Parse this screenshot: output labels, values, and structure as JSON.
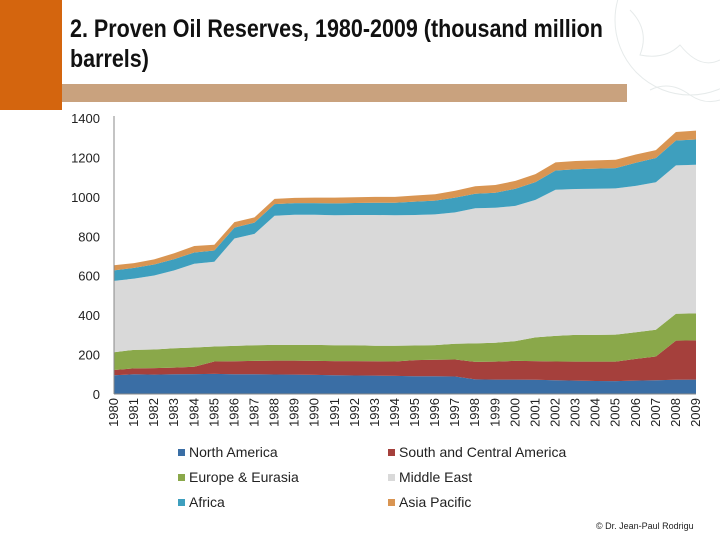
{
  "slide": {
    "title_line1": "2. Proven Oil Reserves, 1980-2009 (thousand million",
    "title_line2": "barrels)",
    "credit": "© Dr. Jean-Paul Rodrigu",
    "colors": {
      "accent": "#d4650e",
      "bar": "#c9a27e"
    }
  },
  "chart_data": {
    "type": "area",
    "stacked": true,
    "title": "2. Proven Oil Reserves, 1980-2009 (thousand million barrels)",
    "xlabel": "",
    "ylabel": "",
    "ylim": [
      0,
      1400
    ],
    "yticks": [
      0,
      200,
      400,
      600,
      800,
      1000,
      1200,
      1400
    ],
    "categories": [
      "1980",
      "1981",
      "1982",
      "1983",
      "1984",
      "1985",
      "1986",
      "1987",
      "1988",
      "1989",
      "1990",
      "1991",
      "1992",
      "1993",
      "1994",
      "1995",
      "1996",
      "1997",
      "1998",
      "1999",
      "2000",
      "2001",
      "2002",
      "2003",
      "2004",
      "2005",
      "2006",
      "2007",
      "2008",
      "2009"
    ],
    "series": [
      {
        "name": "North America",
        "color": "#3a6ea5",
        "values": [
          95,
          100,
          98,
          100,
          101,
          102,
          100,
          100,
          99,
          98,
          97,
          95,
          94,
          93,
          92,
          90,
          90,
          89,
          74,
          73,
          73,
          72,
          70,
          68,
          66,
          65,
          68,
          70,
          72,
          73
        ]
      },
      {
        "name": "South and Central America",
        "color": "#a5403c",
        "values": [
          27,
          30,
          33,
          34,
          37,
          63,
          66,
          68,
          70,
          71,
          71,
          72,
          73,
          73,
          73,
          82,
          84,
          86,
          89,
          91,
          95,
          95,
          95,
          96,
          98,
          99,
          110,
          120,
          199,
          199
        ]
      },
      {
        "name": "Europe & Eurasia",
        "color": "#8aa84a",
        "values": [
          90,
          94,
          95,
          98,
          98,
          76,
          78,
          79,
          80,
          80,
          81,
          80,
          80,
          79,
          80,
          74,
          74,
          80,
          94,
          96,
          100,
          120,
          130,
          136,
          136,
          137,
          135,
          136,
          136,
          137
        ]
      },
      {
        "name": "Middle East",
        "color": "#d9d9d9",
        "values": [
          362,
          361,
          375,
          395,
          425,
          430,
          545,
          565,
          655,
          660,
          660,
          660,
          661,
          663,
          662,
          662,
          663,
          666,
          685,
          685,
          686,
          698,
          741,
          740,
          741,
          742,
          743,
          748,
          753,
          754
        ]
      },
      {
        "name": "Africa",
        "color": "#3e9fbe",
        "values": [
          53,
          55,
          56,
          57,
          57,
          57,
          55,
          57,
          59,
          59,
          59,
          60,
          61,
          62,
          63,
          68,
          70,
          75,
          74,
          76,
          87,
          90,
          98,
          100,
          102,
          103,
          117,
          123,
          126,
          128
        ]
      },
      {
        "name": "Asia Pacific",
        "color": "#d99552",
        "values": [
          26,
          24,
          26,
          30,
          33,
          29,
          28,
          27,
          27,
          27,
          28,
          29,
          29,
          30,
          30,
          31,
          32,
          35,
          38,
          39,
          40,
          40,
          41,
          42,
          42,
          42,
          42,
          40,
          43,
          45
        ]
      }
    ],
    "legend": {
      "position": "bottom",
      "columns": 2
    }
  }
}
